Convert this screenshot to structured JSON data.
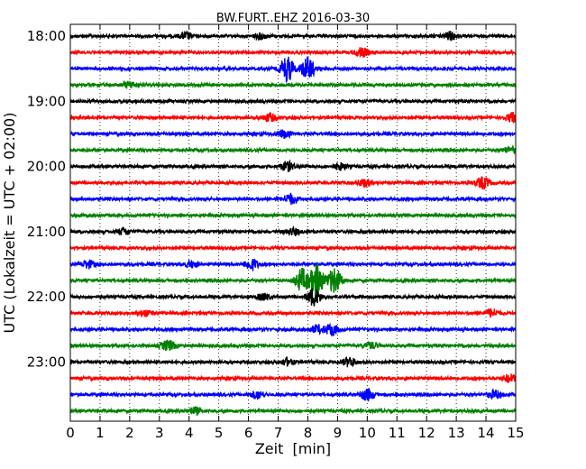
{
  "chart_data": {
    "type": "line",
    "title": "BW.FURT..EHZ 2016-03-30",
    "xlabel": "Zeit  [min]",
    "ylabel": "UTC (Lokalzeit = UTC + 02:00)",
    "xlim": [
      0,
      15
    ],
    "x_ticks": [
      "0",
      "1",
      "2",
      "3",
      "4",
      "5",
      "6",
      "7",
      "8",
      "9",
      "10",
      "11",
      "12",
      "13",
      "14",
      "15"
    ],
    "y_ticks": [
      {
        "label": "18:00",
        "trace": 0
      },
      {
        "label": "19:00",
        "trace": 4
      },
      {
        "label": "20:00",
        "trace": 8
      },
      {
        "label": "21:00",
        "trace": 12
      },
      {
        "label": "22:00",
        "trace": 16
      },
      {
        "label": "23:00",
        "trace": 20
      }
    ],
    "grid": "vertical dotted at each minute",
    "trace_interval_minutes": 15,
    "colors": [
      "#000000",
      "#ff0000",
      "#0000ff",
      "#008000"
    ],
    "traces": [
      {
        "start": "18:00",
        "color": "#000000",
        "events": [
          [
            3.9,
            0.25
          ],
          [
            6.4,
            0.2
          ],
          [
            12.8,
            0.3
          ]
        ]
      },
      {
        "start": "18:15",
        "color": "#ff0000",
        "events": [
          [
            9.8,
            0.35
          ]
        ]
      },
      {
        "start": "18:30",
        "color": "#0000ff",
        "events": [
          [
            7.3,
            1.0
          ],
          [
            8.0,
            0.9
          ]
        ]
      },
      {
        "start": "18:45",
        "color": "#008000",
        "events": [
          [
            2.0,
            0.25
          ]
        ]
      },
      {
        "start": "19:00",
        "color": "#000000",
        "events": []
      },
      {
        "start": "19:15",
        "color": "#ff0000",
        "events": [
          [
            6.7,
            0.3
          ],
          [
            14.9,
            0.35
          ]
        ]
      },
      {
        "start": "19:30",
        "color": "#0000ff",
        "events": [
          [
            7.2,
            0.3
          ]
        ]
      },
      {
        "start": "19:45",
        "color": "#008000",
        "events": [
          [
            14.8,
            0.25
          ]
        ]
      },
      {
        "start": "20:00",
        "color": "#000000",
        "events": [
          [
            7.3,
            0.35
          ],
          [
            9.1,
            0.25
          ]
        ]
      },
      {
        "start": "20:15",
        "color": "#ff0000",
        "events": [
          [
            9.9,
            0.3
          ],
          [
            13.9,
            0.45
          ]
        ]
      },
      {
        "start": "20:30",
        "color": "#0000ff",
        "events": [
          [
            7.4,
            0.4
          ]
        ]
      },
      {
        "start": "20:45",
        "color": "#008000",
        "events": []
      },
      {
        "start": "21:00",
        "color": "#000000",
        "events": [
          [
            1.8,
            0.25
          ],
          [
            7.5,
            0.25
          ]
        ]
      },
      {
        "start": "21:15",
        "color": "#ff0000",
        "events": []
      },
      {
        "start": "21:30",
        "color": "#0000ff",
        "events": [
          [
            0.6,
            0.3
          ],
          [
            4.1,
            0.25
          ],
          [
            6.1,
            0.45
          ]
        ]
      },
      {
        "start": "21:45",
        "color": "#008000",
        "events": [
          [
            7.8,
            0.9
          ],
          [
            8.3,
            1.3
          ],
          [
            8.9,
            1.0
          ]
        ]
      },
      {
        "start": "22:00",
        "color": "#000000",
        "events": [
          [
            8.2,
            0.7
          ],
          [
            6.5,
            0.25
          ]
        ]
      },
      {
        "start": "22:15",
        "color": "#ff0000",
        "events": [
          [
            2.5,
            0.25
          ],
          [
            14.2,
            0.3
          ]
        ]
      },
      {
        "start": "22:30",
        "color": "#0000ff",
        "events": [
          [
            8.8,
            0.45
          ],
          [
            8.3,
            0.3
          ]
        ]
      },
      {
        "start": "22:45",
        "color": "#008000",
        "events": [
          [
            3.3,
            0.4
          ],
          [
            10.1,
            0.25
          ]
        ]
      },
      {
        "start": "23:00",
        "color": "#000000",
        "events": [
          [
            7.3,
            0.25
          ],
          [
            9.4,
            0.35
          ]
        ]
      },
      {
        "start": "23:15",
        "color": "#ff0000",
        "events": [
          [
            14.8,
            0.3
          ]
        ]
      },
      {
        "start": "23:30",
        "color": "#0000ff",
        "events": [
          [
            10.0,
            0.45
          ],
          [
            6.3,
            0.3
          ],
          [
            14.3,
            0.3
          ]
        ]
      },
      {
        "start": "23:45",
        "color": "#008000",
        "events": [
          [
            4.2,
            0.25
          ]
        ]
      }
    ]
  }
}
